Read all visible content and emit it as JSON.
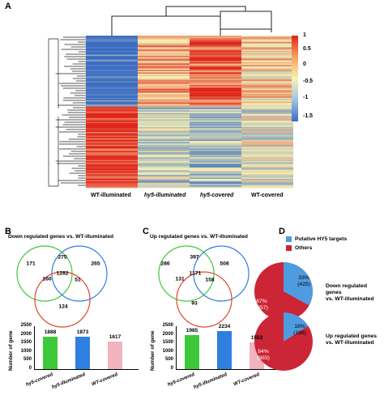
{
  "panel_a": {
    "letter": "A",
    "columns": [
      {
        "label": "WT-illuminated",
        "italic": false
      },
      {
        "label": "hy5-illuminated",
        "italic": true
      },
      {
        "label": "hy5-covered",
        "italic": true
      },
      {
        "label": "WT-covered",
        "italic": false
      }
    ],
    "colorbar": {
      "ticks": [
        "1",
        "0.5",
        "0",
        "-0.5",
        "-1",
        "-1.5"
      ],
      "high_color": "#e0251b",
      "mid_color": "#f7f2b3",
      "low_color": "#3b6cc4"
    }
  },
  "panel_b": {
    "letter": "B",
    "title": "Down regulated genes vs. WT-illuminated",
    "venn": {
      "only_green": "171",
      "green_blue": "275",
      "only_blue": "265",
      "green_red": "160",
      "center": "1282",
      "blue_red": "51",
      "only_red": "124"
    },
    "bars": {
      "ylabel": "Number of gene",
      "ticks": [
        "2500",
        "2000",
        "1500",
        "1000",
        "500",
        "0"
      ],
      "ymax": 2500,
      "items": [
        {
          "label": "hy5-covered",
          "value": 1888,
          "value_text": "1888",
          "color": "#3ec93a"
        },
        {
          "label": "hy5-illuminated",
          "value": 1873,
          "value_text": "1873",
          "color": "#2f7fe0"
        },
        {
          "label": "WT-covered",
          "value": 1617,
          "value_text": "1617",
          "color": "#f1b3bd"
        }
      ]
    }
  },
  "panel_c": {
    "letter": "C",
    "title": "Up regulated genes vs. WT-illuminated",
    "venn": {
      "only_green": "286",
      "green_blue": "397",
      "only_blue": "508",
      "green_red": "131",
      "center": "1171",
      "blue_red": "158",
      "only_red": "93"
    },
    "bars": {
      "ylabel": "Number of gene",
      "ticks": [
        "2500",
        "2000",
        "1500",
        "1000",
        "500",
        "0"
      ],
      "ymax": 2500,
      "items": [
        {
          "label": "hy5-covered",
          "value": 1985,
          "value_text": "1985",
          "color": "#3ec93a"
        },
        {
          "label": "hy5-illuminated",
          "value": 2234,
          "value_text": "2234",
          "color": "#2f7fe0"
        },
        {
          "label": "WT-covered",
          "value": 1553,
          "value_text": "1553",
          "color": "#f1b3bd"
        }
      ]
    }
  },
  "panel_d": {
    "letter": "D",
    "legend": [
      {
        "label": "Putative HY5 targets",
        "color": "#4f9be0"
      },
      {
        "label": "Others",
        "color": "#cc2535"
      }
    ],
    "pies": [
      {
        "label_line1": "Down regulated genes",
        "label_line2": "vs. WT-illuminated",
        "target_pct": "33%",
        "target_count": "(425)",
        "other_pct": "67%",
        "other_count": "(857)",
        "target_fraction": 0.33
      },
      {
        "label_line1": "Up regulated genes",
        "label_line2": "vs. WT-illuminated",
        "target_pct": "16%",
        "target_count": "(188)",
        "other_pct": "84%",
        "other_count": "(983)",
        "target_fraction": 0.16
      }
    ]
  }
}
